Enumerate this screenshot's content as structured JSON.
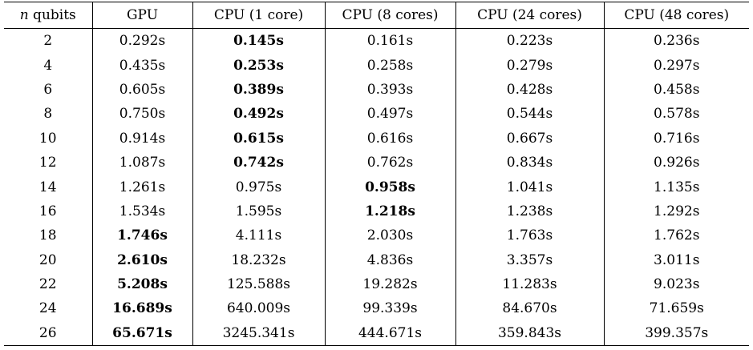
{
  "table": {
    "header": {
      "n_symbol": "n",
      "n_rest": " qubits",
      "columns": [
        "GPU",
        "CPU (1 core)",
        "CPU (8 cores)",
        "CPU (24 cores)",
        "CPU (48 cores)"
      ]
    },
    "rows": [
      {
        "n": "2",
        "values": [
          "0.292s",
          "0.145s",
          "0.161s",
          "0.223s",
          "0.236s"
        ],
        "bold_index": 1
      },
      {
        "n": "4",
        "values": [
          "0.435s",
          "0.253s",
          "0.258s",
          "0.279s",
          "0.297s"
        ],
        "bold_index": 1
      },
      {
        "n": "6",
        "values": [
          "0.605s",
          "0.389s",
          "0.393s",
          "0.428s",
          "0.458s"
        ],
        "bold_index": 1
      },
      {
        "n": "8",
        "values": [
          "0.750s",
          "0.492s",
          "0.497s",
          "0.544s",
          "0.578s"
        ],
        "bold_index": 1
      },
      {
        "n": "10",
        "values": [
          "0.914s",
          "0.615s",
          "0.616s",
          "0.667s",
          "0.716s"
        ],
        "bold_index": 1
      },
      {
        "n": "12",
        "values": [
          "1.087s",
          "0.742s",
          "0.762s",
          "0.834s",
          "0.926s"
        ],
        "bold_index": 1
      },
      {
        "n": "14",
        "values": [
          "1.261s",
          "0.975s",
          "0.958s",
          "1.041s",
          "1.135s"
        ],
        "bold_index": 2
      },
      {
        "n": "16",
        "values": [
          "1.534s",
          "1.595s",
          "1.218s",
          "1.238s",
          "1.292s"
        ],
        "bold_index": 2
      },
      {
        "n": "18",
        "values": [
          "1.746s",
          "4.111s",
          "2.030s",
          "1.763s",
          "1.762s"
        ],
        "bold_index": 0
      },
      {
        "n": "20",
        "values": [
          "2.610s",
          "18.232s",
          "4.836s",
          "3.357s",
          "3.011s"
        ],
        "bold_index": 0
      },
      {
        "n": "22",
        "values": [
          "5.208s",
          "125.588s",
          "19.282s",
          "11.283s",
          "9.023s"
        ],
        "bold_index": 0
      },
      {
        "n": "24",
        "values": [
          "16.689s",
          "640.009s",
          "99.339s",
          "84.670s",
          "71.659s"
        ],
        "bold_index": 0
      },
      {
        "n": "26",
        "values": [
          "65.671s",
          "3245.341s",
          "444.671s",
          "359.843s",
          "399.357s"
        ],
        "bold_index": 0
      }
    ]
  }
}
